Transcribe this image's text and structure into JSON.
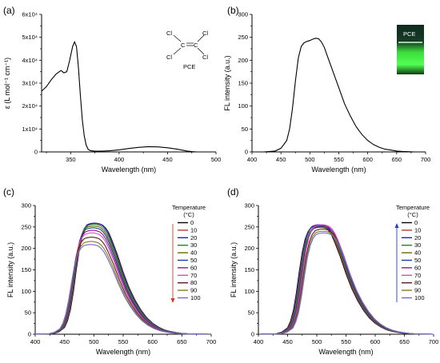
{
  "panels": {
    "a": {
      "label": "(a)"
    },
    "b": {
      "label": "(b)"
    },
    "c": {
      "label": "(c)"
    },
    "d": {
      "label": "(d)"
    }
  },
  "molecule": {
    "atoms": [
      "Cl",
      "Cl",
      "C",
      "C",
      "Cl",
      "Cl"
    ],
    "name": "PCE"
  },
  "vial": {
    "label": "PCE",
    "glow_color": "#4cff4c"
  },
  "chart_data": [
    {
      "id": "a",
      "type": "line",
      "xlabel": "Wavelength (nm)",
      "ylabel": "ε (L mol⁻¹ cm⁻¹)",
      "xlim": [
        320,
        500
      ],
      "ylim": [
        0,
        60000
      ],
      "xticks": [
        350,
        400,
        450,
        500
      ],
      "yticks": [
        0,
        10000,
        20000,
        30000,
        40000,
        50000,
        60000
      ],
      "ytick_labels": [
        "0",
        "1x10⁴",
        "2x10⁴",
        "3x10⁴",
        "4x10⁴",
        "5x10⁴",
        "6x10⁴"
      ],
      "series": [
        {
          "color": "#000000",
          "x": [
            320,
            325,
            330,
            335,
            340,
            343,
            346,
            349,
            352,
            354,
            356,
            358,
            360,
            362,
            364,
            366,
            368,
            370,
            375,
            380,
            390,
            400,
            410,
            420,
            430,
            440,
            450,
            460,
            470,
            475,
            480
          ],
          "y": [
            26500,
            28500,
            31500,
            34000,
            35500,
            34500,
            35000,
            40000,
            46000,
            48000,
            46000,
            37000,
            25000,
            14000,
            7000,
            3000,
            1200,
            600,
            300,
            300,
            500,
            900,
            1500,
            2000,
            2300,
            2200,
            1800,
            1200,
            400,
            150,
            0
          ]
        }
      ]
    },
    {
      "id": "b",
      "type": "line",
      "xlabel": "Wavelength (nm)",
      "ylabel": "FL intensity (a.u.)",
      "xlim": [
        400,
        700
      ],
      "ylim": [
        0,
        300
      ],
      "xticks": [
        400,
        450,
        500,
        550,
        600,
        650,
        700
      ],
      "yticks": [
        0,
        50,
        100,
        150,
        200,
        250,
        300
      ],
      "series": [
        {
          "color": "#000000",
          "x": [
            420,
            440,
            450,
            460,
            465,
            470,
            475,
            480,
            485,
            490,
            495,
            500,
            505,
            510,
            515,
            520,
            525,
            530,
            540,
            550,
            560,
            570,
            580,
            590,
            600,
            610,
            620,
            630,
            640,
            650,
            660,
            680,
            700
          ],
          "y": [
            0,
            2,
            8,
            25,
            50,
            95,
            155,
            205,
            230,
            238,
            241,
            243,
            246,
            248,
            247,
            240,
            228,
            210,
            175,
            140,
            105,
            78,
            55,
            38,
            25,
            16,
            10,
            6,
            4,
            2,
            1,
            0,
            0
          ]
        }
      ]
    },
    {
      "id": "c",
      "type": "line",
      "xlabel": "Wavelength (nm)",
      "ylabel": "FL intensity (a.u.)",
      "xlim": [
        400,
        700
      ],
      "ylim": [
        0,
        300
      ],
      "xticks": [
        400,
        450,
        500,
        550,
        600,
        650,
        700
      ],
      "yticks": [
        0,
        50,
        100,
        150,
        200,
        250,
        300
      ],
      "legend_title": "Temperature (°C)",
      "arrow_direction": "down",
      "arrow_color": "#d9342b",
      "series": [
        {
          "name": "0",
          "color": "#000000",
          "peak": 258
        },
        {
          "name": "10",
          "color": "#c0392b",
          "peak": 258
        },
        {
          "name": "20",
          "color": "#1f1fd0",
          "peak": 259
        },
        {
          "name": "30",
          "color": "#1d8a2b",
          "peak": 256
        },
        {
          "name": "40",
          "color": "#6b6b00",
          "peak": 252
        },
        {
          "name": "50",
          "color": "#1a3f9e",
          "peak": 248
        },
        {
          "name": "60",
          "color": "#8b1a8b",
          "peak": 242
        },
        {
          "name": "70",
          "color": "#d24fc4",
          "peak": 236
        },
        {
          "name": "80",
          "color": "#5a1e1e",
          "peak": 226
        },
        {
          "name": "90",
          "color": "#8a7a20",
          "peak": 216
        },
        {
          "name": "100",
          "color": "#6a6ad0",
          "peak": 209
        }
      ]
    },
    {
      "id": "d",
      "type": "line",
      "xlabel": "Wavelength (nm)",
      "ylabel": "FL intensity (a.u.)",
      "xlim": [
        400,
        700
      ],
      "ylim": [
        0,
        300
      ],
      "xticks": [
        400,
        450,
        500,
        550,
        600,
        650,
        700
      ],
      "yticks": [
        0,
        50,
        100,
        150,
        200,
        250,
        300
      ],
      "legend_title": "Temperature (°C)",
      "arrow_direction": "up",
      "arrow_color": "#1f3fd0",
      "series": [
        {
          "name": "0",
          "color": "#000000",
          "peak": 252
        },
        {
          "name": "10",
          "color": "#c0392b",
          "peak": 253
        },
        {
          "name": "20",
          "color": "#1f1fd0",
          "peak": 255
        },
        {
          "name": "30",
          "color": "#1d8a2b",
          "peak": 251
        },
        {
          "name": "40",
          "color": "#6b6b00",
          "peak": 249
        },
        {
          "name": "50",
          "color": "#1a3f9e",
          "peak": 250
        },
        {
          "name": "60",
          "color": "#8b1a8b",
          "peak": 253
        },
        {
          "name": "70",
          "color": "#d24fc4",
          "peak": 255
        },
        {
          "name": "80",
          "color": "#5a1e1e",
          "peak": 245
        },
        {
          "name": "90",
          "color": "#8a7a20",
          "peak": 240
        },
        {
          "name": "100",
          "color": "#6a6ad0",
          "peak": 236
        }
      ]
    }
  ]
}
